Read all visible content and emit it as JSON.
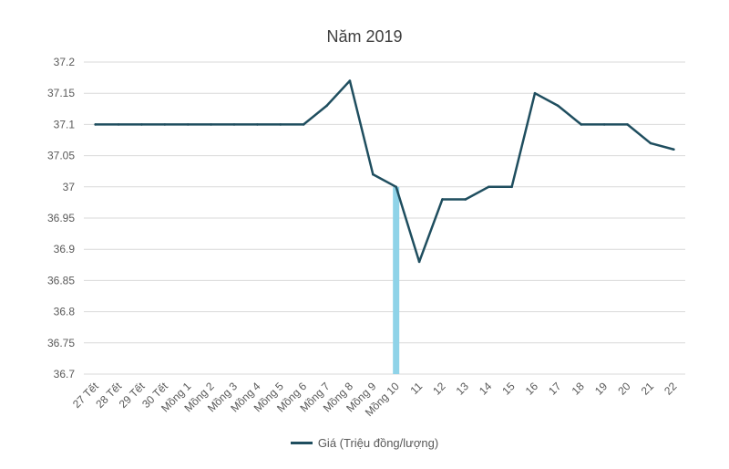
{
  "chart_data": {
    "type": "line",
    "title": "Năm 2019",
    "xlabel": "",
    "ylabel": "",
    "categories": [
      "27 Tết",
      "28 Tết",
      "29 Tết",
      "30 Tết",
      "Mồng 1",
      "Mồng 2",
      "Mồng 3",
      "Mồng 4",
      "Mồng 5",
      "Mồng 6",
      "Mồng 7",
      "Mồng 8",
      "Mồng 9",
      "Mồng 10",
      "11",
      "12",
      "13",
      "14",
      "15",
      "16",
      "17",
      "18",
      "19",
      "20",
      "21",
      "22"
    ],
    "series": [
      {
        "name": "Giá (Triệu đồng/lượng)",
        "values": [
          37.1,
          37.1,
          37.1,
          37.1,
          37.1,
          37.1,
          37.1,
          37.1,
          37.1,
          37.1,
          37.13,
          37.17,
          37.02,
          37.0,
          36.88,
          36.98,
          36.98,
          37.0,
          37.0,
          37.15,
          37.13,
          37.1,
          37.1,
          37.1,
          37.07,
          37.06
        ],
        "color": "#1F4E5F"
      }
    ],
    "highlight": {
      "category": "Mồng 10",
      "color": "#8FD3E8"
    },
    "ylim": [
      36.7,
      37.2
    ],
    "yticks": [
      "36.7",
      "36.75",
      "36.8",
      "36.85",
      "36.9",
      "36.95",
      "37",
      "37.05",
      "37.1",
      "37.15",
      "37.2"
    ],
    "grid": true,
    "legend_position": "bottom"
  }
}
